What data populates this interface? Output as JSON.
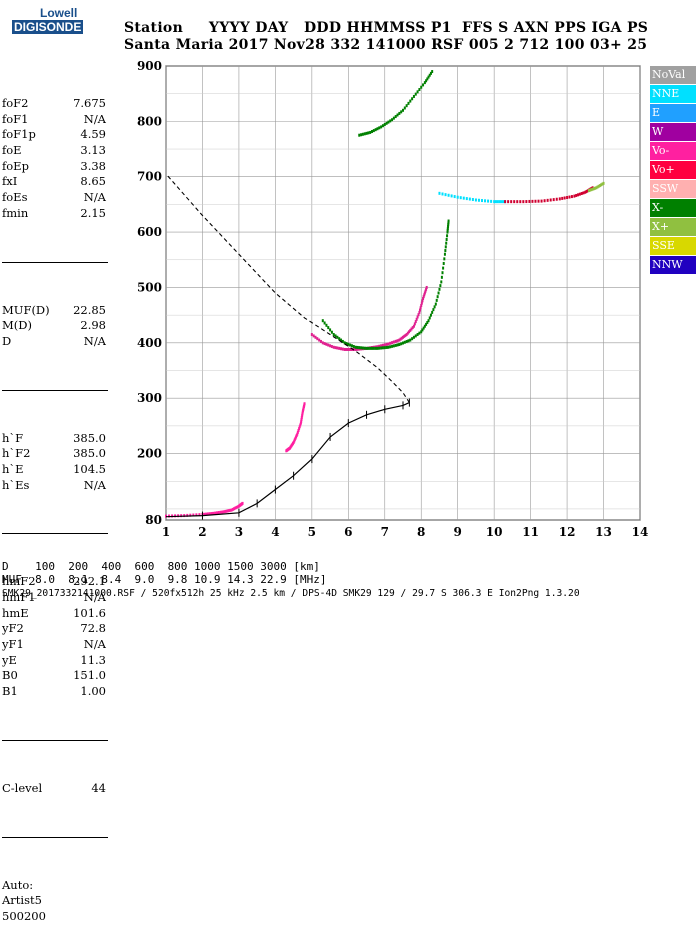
{
  "logo": {
    "line1": "Lowell",
    "line2": "DIGISONDE"
  },
  "header": {
    "line1": "Station     YYYY DAY   DDD HHMMSS P1  FFS S AXN PPS IGA PS",
    "line2": "Santa Maria 2017 Nov28 332 141000 RSF 005 2 712 100 03+ 25"
  },
  "params": {
    "group1": [
      {
        "label": "foF2",
        "value": "7.675"
      },
      {
        "label": "foF1",
        "value": "N/A"
      },
      {
        "label": "foF1p",
        "value": "4.59"
      },
      {
        "label": "foE",
        "value": "3.13"
      },
      {
        "label": "foEp",
        "value": "3.38"
      },
      {
        "label": "fxI",
        "value": "8.65"
      },
      {
        "label": "foEs",
        "value": "N/A"
      },
      {
        "label": "fmin",
        "value": "2.15"
      }
    ],
    "group2": [
      {
        "label": "MUF(D)",
        "value": "22.85"
      },
      {
        "label": "M(D)",
        "value": "2.98"
      },
      {
        "label": "D",
        "value": "N/A"
      }
    ],
    "group3": [
      {
        "label": "h`F",
        "value": "385.0"
      },
      {
        "label": "h`F2",
        "value": "385.0"
      },
      {
        "label": "h`E",
        "value": "104.5"
      },
      {
        "label": "h`Es",
        "value": "N/A"
      }
    ],
    "group4": [
      {
        "label": "hmF2",
        "value": "292.1"
      },
      {
        "label": "hmF1",
        "value": "N/A"
      },
      {
        "label": "hmE",
        "value": "101.6"
      },
      {
        "label": "yF2",
        "value": "72.8"
      },
      {
        "label": "yF1",
        "value": "N/A"
      },
      {
        "label": "yE",
        "value": "11.3"
      },
      {
        "label": "B0",
        "value": "151.0"
      },
      {
        "label": "B1",
        "value": "1.00"
      }
    ],
    "group5": [
      {
        "label": "C-level",
        "value": "44"
      }
    ],
    "autoscale": [
      "Auto:",
      "Artist5",
      "500200"
    ]
  },
  "legend": [
    {
      "label": "NoVal",
      "color": "#a0a0a0"
    },
    {
      "label": "NNE",
      "color": "#00e0ff"
    },
    {
      "label": "E",
      "color": "#20a0ff"
    },
    {
      "label": "W",
      "color": "#a000a0"
    },
    {
      "label": "Vo-",
      "color": "#ff20a0"
    },
    {
      "label": "Vo+",
      "color": "#ff0040"
    },
    {
      "label": "SSW",
      "color": "#ffb0b0"
    },
    {
      "label": "X-",
      "color": "#008000"
    },
    {
      "label": "X+",
      "color": "#90c040"
    },
    {
      "label": "SSE",
      "color": "#d8d800"
    },
    {
      "label": "NNW",
      "color": "#2000c0"
    }
  ],
  "footer": {
    "d_row": "D    100  200  400  600  800 1000 1500 3000 [km]",
    "muf_row": "MUF  8.0  8.1  8.4  9.0  9.8 10.9 14.3 22.9 [MHz]",
    "file_row": "SMK29_2017332141000.RSF / 520fx512h 25 kHz 2.5 km / DPS-4D SMK29 129 / 29.7 S 306.3 E Ion2Png 1.3.20"
  },
  "chart_data": {
    "type": "scatter",
    "title": "",
    "xlabel": "",
    "ylabel": "",
    "xlim": [
      1,
      14
    ],
    "ylim": [
      80,
      900
    ],
    "x_ticks": [
      1,
      2,
      3,
      4,
      5,
      6,
      7,
      8,
      9,
      10,
      11,
      12,
      13,
      14
    ],
    "y_ticks": [
      80,
      200,
      300,
      400,
      500,
      600,
      700,
      800,
      900
    ],
    "grid": true,
    "series": [
      {
        "name": "Vo- (O trace low)",
        "color": "#ff20a0",
        "points": [
          [
            1.0,
            87
          ],
          [
            1.5,
            88
          ],
          [
            2.0,
            90
          ],
          [
            2.3,
            92
          ],
          [
            2.6,
            95
          ],
          [
            2.8,
            98
          ],
          [
            3.0,
            105
          ],
          [
            3.1,
            110
          ]
        ]
      },
      {
        "name": "Vo- E-region",
        "color": "#ff20a0",
        "points": [
          [
            4.3,
            205
          ],
          [
            4.4,
            210
          ],
          [
            4.5,
            220
          ],
          [
            4.6,
            235
          ],
          [
            4.7,
            255
          ],
          [
            4.75,
            275
          ],
          [
            4.8,
            290
          ]
        ]
      },
      {
        "name": "Vo- F2 trace",
        "color": "#e0208f",
        "points": [
          [
            5.0,
            415
          ],
          [
            5.3,
            400
          ],
          [
            5.6,
            392
          ],
          [
            5.9,
            388
          ],
          [
            6.2,
            388
          ],
          [
            6.5,
            390
          ],
          [
            6.8,
            393
          ],
          [
            7.1,
            398
          ],
          [
            7.4,
            405
          ],
          [
            7.6,
            415
          ],
          [
            7.8,
            430
          ],
          [
            7.95,
            455
          ],
          [
            8.05,
            480
          ],
          [
            8.15,
            500
          ]
        ]
      },
      {
        "name": "X- F2 trace",
        "color": "#008000",
        "points": [
          [
            5.3,
            440
          ],
          [
            5.6,
            415
          ],
          [
            5.9,
            400
          ],
          [
            6.2,
            392
          ],
          [
            6.5,
            390
          ],
          [
            6.8,
            390
          ],
          [
            7.1,
            392
          ],
          [
            7.4,
            397
          ],
          [
            7.7,
            405
          ],
          [
            8.0,
            420
          ],
          [
            8.2,
            440
          ],
          [
            8.4,
            470
          ],
          [
            8.55,
            510
          ],
          [
            8.65,
            560
          ],
          [
            8.72,
            600
          ],
          [
            8.75,
            620
          ]
        ]
      },
      {
        "name": "NNE oblique",
        "color": "#00e0ff",
        "points": [
          [
            8.5,
            670
          ],
          [
            9.0,
            663
          ],
          [
            9.5,
            658
          ],
          [
            10.0,
            655
          ],
          [
            10.3,
            655
          ]
        ]
      },
      {
        "name": "Vo+ oblique",
        "color": "#d00030",
        "points": [
          [
            10.3,
            655
          ],
          [
            10.8,
            655
          ],
          [
            11.3,
            656
          ],
          [
            11.8,
            660
          ],
          [
            12.2,
            665
          ],
          [
            12.5,
            672
          ],
          [
            12.7,
            680
          ]
        ]
      },
      {
        "name": "X+ oblique",
        "color": "#90c040",
        "points": [
          [
            12.6,
            675
          ],
          [
            12.8,
            680
          ],
          [
            13.0,
            688
          ]
        ]
      },
      {
        "name": "Upper trace",
        "color": "#008000",
        "points": [
          [
            6.3,
            775
          ],
          [
            6.6,
            780
          ],
          [
            6.9,
            790
          ],
          [
            7.2,
            803
          ],
          [
            7.5,
            820
          ],
          [
            7.8,
            845
          ],
          [
            8.1,
            870
          ],
          [
            8.3,
            890
          ]
        ]
      }
    ],
    "profile": {
      "name": "Electron density profile",
      "color": "#000000",
      "solid": [
        [
          1.0,
          86
        ],
        [
          2.0,
          88
        ],
        [
          3.0,
          93
        ],
        [
          3.5,
          110
        ],
        [
          4.0,
          135
        ],
        [
          4.5,
          160
        ],
        [
          5.0,
          190
        ],
        [
          5.5,
          230
        ],
        [
          6.0,
          255
        ],
        [
          6.5,
          270
        ],
        [
          7.0,
          280
        ],
        [
          7.5,
          287
        ],
        [
          7.675,
          292
        ]
      ],
      "dashed": [
        [
          7.675,
          292
        ],
        [
          7.5,
          310
        ],
        [
          7.2,
          330
        ],
        [
          6.8,
          355
        ],
        [
          6.2,
          385
        ],
        [
          5.5,
          415
        ],
        [
          4.8,
          445
        ],
        [
          4.0,
          490
        ],
        [
          3.0,
          560
        ],
        [
          2.0,
          630
        ],
        [
          1.0,
          705
        ]
      ]
    }
  }
}
